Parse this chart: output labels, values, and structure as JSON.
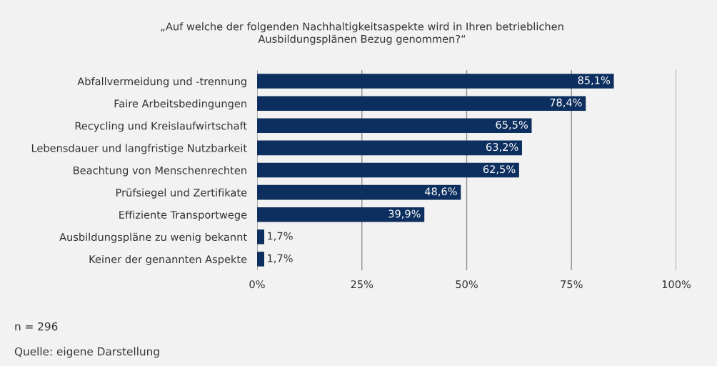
{
  "chart_data": {
    "type": "bar",
    "orientation": "horizontal",
    "title": "„Auf welche der folgenden Nachhaltigkeitsaspekte wird in Ihren betrieblichen\nAusbildungsplänen Bezug genommen?“",
    "categories": [
      "Abfallvermeidung und -trennung",
      "Faire Arbeitsbedingungen",
      "Recycling und Kreislaufwirtschaft",
      "Lebensdauer und langfristige Nutzbarkeit",
      "Beachtung von Menschenrechten",
      "Prüfsiegel und Zertifikate",
      "Effiziente Transportwege",
      "Ausbildungspläne zu wenig bekannt",
      "Keiner der genannten Aspekte"
    ],
    "values": [
      85.1,
      78.4,
      65.5,
      63.2,
      62.5,
      48.6,
      39.9,
      1.7,
      1.7
    ],
    "value_labels": [
      "85,1%",
      "78,4%",
      "65,5%",
      "63,2%",
      "62,5%",
      "48,6%",
      "39,9%",
      "1,7%",
      "1,7%"
    ],
    "color": "#0d2f5f",
    "xlim": [
      0,
      100
    ],
    "xticks": [
      {
        "value": 0,
        "label": "0%"
      },
      {
        "value": 25,
        "label": "25%"
      },
      {
        "value": 50,
        "label": "50%"
      },
      {
        "value": 75,
        "label": "75%"
      },
      {
        "value": 100,
        "label": "100%"
      }
    ],
    "grid": "x",
    "legend": false,
    "annotations": [
      "n = 296",
      "Quelle: eigene Darstellung"
    ]
  }
}
